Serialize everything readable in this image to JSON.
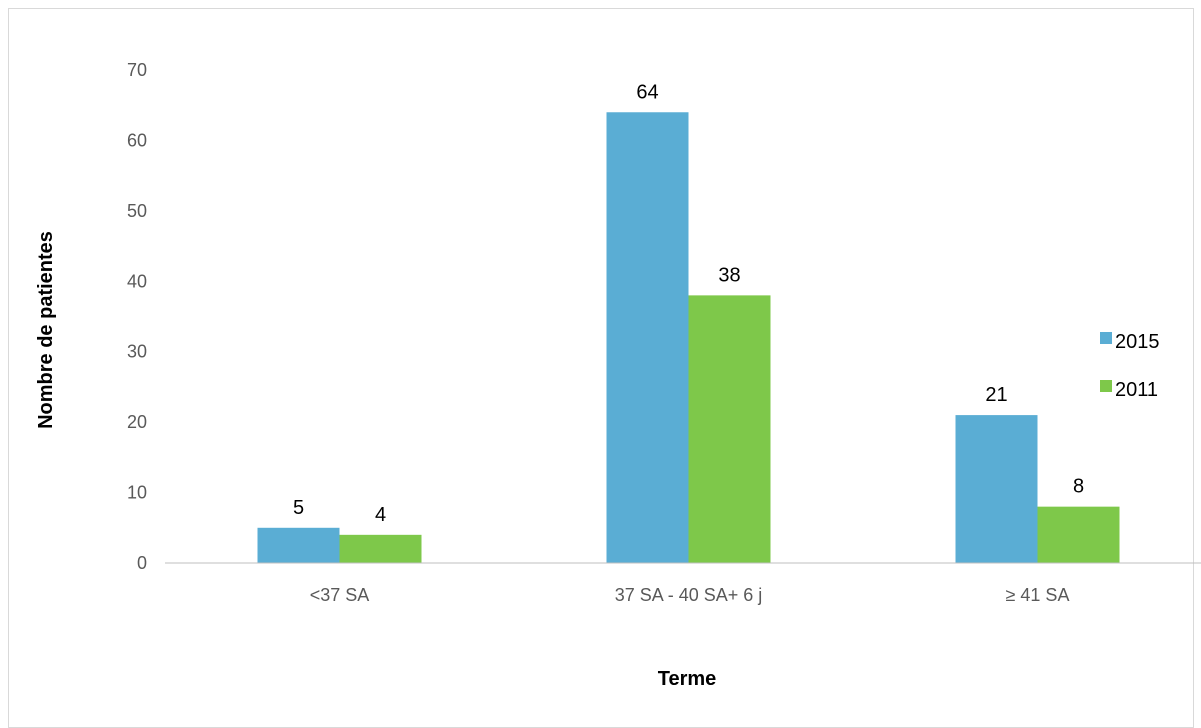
{
  "chart_data": {
    "type": "bar",
    "categories": [
      "<37 SA",
      "37 SA - 40 SA+ 6 j",
      "≥ 41 SA"
    ],
    "series": [
      {
        "name": "2015",
        "values": [
          5,
          64,
          21
        ],
        "color": "#5aadd4"
      },
      {
        "name": "2011",
        "values": [
          4,
          38,
          8
        ],
        "color": "#7ec84a"
      }
    ],
    "title": "",
    "xlabel": "Terme",
    "ylabel": "Nombre de patientes",
    "ylim": [
      0,
      70
    ],
    "yticks": [
      0,
      10,
      20,
      30,
      40,
      50,
      60,
      70
    ],
    "grid": false,
    "legend_position": "right",
    "data_labels": true
  }
}
